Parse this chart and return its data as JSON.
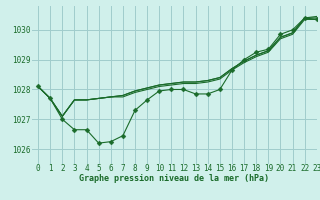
{
  "title": "Graphe pression niveau de la mer (hPa)",
  "background_color": "#d0f0eb",
  "grid_color": "#a0cccc",
  "line_color": "#1a6b2a",
  "xlim": [
    -0.5,
    23
  ],
  "ylim": [
    1025.5,
    1030.8
  ],
  "yticks": [
    1026,
    1027,
    1028,
    1029,
    1030
  ],
  "xticks": [
    0,
    1,
    2,
    3,
    4,
    5,
    6,
    7,
    8,
    9,
    10,
    11,
    12,
    13,
    14,
    15,
    16,
    17,
    18,
    19,
    20,
    21,
    22,
    23
  ],
  "series": [
    [
      1028.1,
      1027.7,
      1027.0,
      1026.65,
      1026.65,
      1026.2,
      1026.25,
      1026.45,
      1027.3,
      1027.65,
      1027.95,
      1028.0,
      1028.0,
      1027.85,
      1027.85,
      1028.0,
      1028.65,
      1029.0,
      1029.25,
      1029.35,
      1029.85,
      1030.0,
      1030.4,
      1030.35
    ],
    [
      1028.1,
      1027.7,
      1027.1,
      1027.65,
      1027.65,
      1027.7,
      1027.75,
      1027.75,
      1027.9,
      1028.0,
      1028.1,
      1028.15,
      1028.2,
      1028.2,
      1028.25,
      1028.35,
      1028.65,
      1028.9,
      1029.1,
      1029.25,
      1029.7,
      1029.85,
      1030.35,
      1030.35
    ],
    [
      1028.1,
      1027.7,
      1027.1,
      1027.65,
      1027.65,
      1027.7,
      1027.75,
      1027.8,
      1027.95,
      1028.05,
      1028.15,
      1028.2,
      1028.25,
      1028.25,
      1028.3,
      1028.4,
      1028.7,
      1028.95,
      1029.15,
      1029.3,
      1029.75,
      1029.9,
      1030.4,
      1030.4
    ],
    [
      1028.1,
      1027.7,
      1027.1,
      1027.65,
      1027.65,
      1027.7,
      1027.75,
      1027.8,
      1027.95,
      1028.05,
      1028.15,
      1028.2,
      1028.25,
      1028.25,
      1028.3,
      1028.4,
      1028.7,
      1028.95,
      1029.15,
      1029.3,
      1029.75,
      1029.9,
      1030.4,
      1030.45
    ]
  ],
  "marker_size": 2.5
}
